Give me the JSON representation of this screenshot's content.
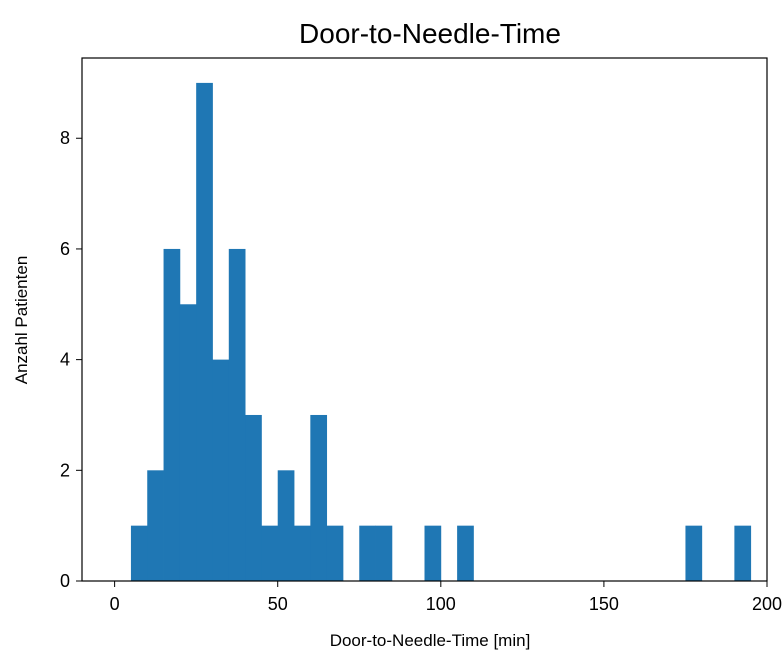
{
  "chart_data": {
    "type": "histogram",
    "title": "Door-to-Needle-Time",
    "xlabel": "Door-to-Needle-Time [min]",
    "ylabel": "Anzahl Patienten",
    "xlim": [
      -10,
      200
    ],
    "ylim": [
      0,
      9.45
    ],
    "xticks": [
      0,
      50,
      100,
      150,
      200
    ],
    "yticks": [
      0,
      2,
      4,
      6,
      8
    ],
    "bin_width": 5,
    "bar_color": "#1f77b4",
    "bins": [
      {
        "start": 5,
        "count": 1
      },
      {
        "start": 10,
        "count": 2
      },
      {
        "start": 15,
        "count": 6
      },
      {
        "start": 20,
        "count": 5
      },
      {
        "start": 25,
        "count": 9
      },
      {
        "start": 30,
        "count": 4
      },
      {
        "start": 35,
        "count": 6
      },
      {
        "start": 40,
        "count": 3
      },
      {
        "start": 45,
        "count": 1
      },
      {
        "start": 50,
        "count": 2
      },
      {
        "start": 55,
        "count": 1
      },
      {
        "start": 60,
        "count": 3
      },
      {
        "start": 65,
        "count": 1
      },
      {
        "start": 75,
        "count": 1
      },
      {
        "start": 80,
        "count": 1
      },
      {
        "start": 95,
        "count": 1
      },
      {
        "start": 105,
        "count": 1
      },
      {
        "start": 175,
        "count": 1
      },
      {
        "start": 190,
        "count": 1
      }
    ],
    "grid": false,
    "legend": "none"
  }
}
